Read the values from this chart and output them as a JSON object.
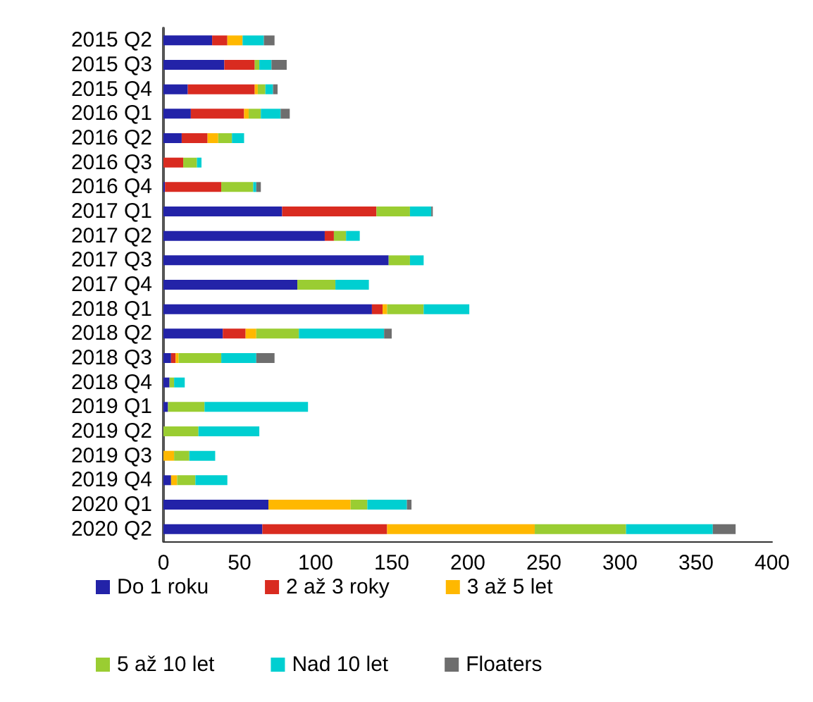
{
  "chart_data": {
    "type": "bar",
    "orientation": "horizontal",
    "stacked": true,
    "categories": [
      "2015 Q2",
      "2015 Q3",
      "2015 Q4",
      "2016 Q1",
      "2016 Q2",
      "2016 Q3",
      "2016 Q4",
      "2017 Q1",
      "2017 Q2",
      "2017 Q3",
      "2017 Q4",
      "2018 Q1",
      "2018 Q2",
      "2018 Q3",
      "2018 Q4",
      "2019 Q1",
      "2019 Q2",
      "2019 Q3",
      "2019 Q4",
      "2020 Q1",
      "2020 Q2"
    ],
    "series": [
      {
        "name": "Do 1 roku",
        "color": "#2323a8",
        "values": [
          32,
          40,
          16,
          18,
          12,
          0,
          1,
          78,
          106,
          148,
          88,
          137,
          39,
          5,
          4,
          3,
          0,
          0,
          5,
          69,
          65
        ]
      },
      {
        "name": "2 až 3 roky",
        "color": "#d92b20",
        "values": [
          10,
          20,
          44,
          35,
          17,
          13,
          37,
          62,
          6,
          0,
          0,
          7,
          15,
          3,
          0,
          0,
          0,
          0,
          0,
          0,
          82
        ]
      },
      {
        "name": "3 až 5 let",
        "color": "#ffb800",
        "values": [
          10,
          0,
          2,
          3,
          7,
          0,
          0,
          0,
          0,
          0,
          0,
          3,
          7,
          2,
          0,
          0,
          0,
          7,
          4,
          54,
          97
        ]
      },
      {
        "name": "5 až 10 let",
        "color": "#9acd32",
        "values": [
          0,
          3,
          5,
          8,
          9,
          9,
          21,
          22,
          8,
          14,
          25,
          24,
          28,
          28,
          3,
          24,
          23,
          10,
          12,
          11,
          60
        ]
      },
      {
        "name": "Nad 10 let",
        "color": "#00cfd1",
        "values": [
          14,
          8,
          5,
          13,
          8,
          3,
          2,
          14,
          9,
          9,
          22,
          30,
          56,
          23,
          7,
          68,
          40,
          17,
          21,
          26,
          57
        ]
      },
      {
        "name": "Floaters",
        "color": "#6e6e6e",
        "values": [
          7,
          10,
          3,
          6,
          0,
          0,
          3,
          1,
          0,
          0,
          0,
          0,
          5,
          12,
          0,
          0,
          0,
          0,
          0,
          3,
          15
        ]
      }
    ],
    "xlim": [
      0,
      400
    ],
    "xticks": [
      0,
      50,
      100,
      150,
      200,
      250,
      300,
      350,
      400
    ],
    "grid": false,
    "legend": "bottom"
  }
}
